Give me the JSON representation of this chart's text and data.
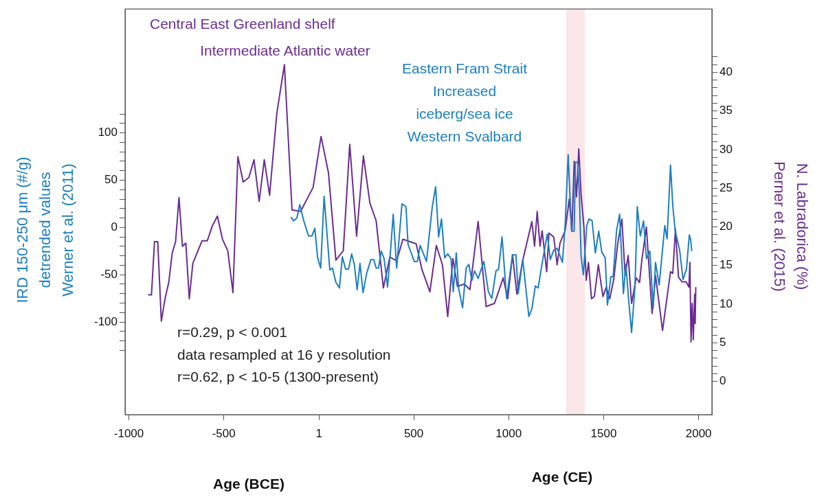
{
  "chart_data": {
    "type": "line",
    "xlabel": "Age (BCE)",
    "ylabel": "IRD 150-250 μm (#/g)\ndetrended values\nWerner et al. (2011)",
    "y2label": "N. Labradorica (%)\nPerner et al. (2015)",
    "xlim": [
      -1020,
      2070
    ],
    "xticks": [
      -1000,
      -500,
      1,
      500,
      1000,
      1500,
      2000
    ],
    "ylim": [
      -198,
      231
    ],
    "yticks": [
      {
        "value": -130,
        "label": null
      },
      {
        "value": -120,
        "label": null
      },
      {
        "value": -110,
        "label": null
      },
      -100,
      {
        "value": -90,
        "label": null
      },
      {
        "value": -80,
        "label": null
      },
      {
        "value": -70,
        "label": null
      },
      {
        "value": -60,
        "label": null
      },
      -50,
      {
        "value": -40,
        "label": null
      },
      {
        "value": -30,
        "label": null
      },
      {
        "value": -20,
        "label": null
      },
      {
        "value": -10,
        "label": null
      },
      0,
      {
        "value": 10,
        "label": null
      },
      {
        "value": 20,
        "label": null
      },
      {
        "value": 30,
        "label": null
      },
      {
        "value": 40,
        "label": null
      },
      50,
      {
        "value": 60,
        "label": null
      },
      {
        "value": 70,
        "label": null
      },
      {
        "value": 80,
        "label": null
      },
      {
        "value": 90,
        "label": null
      },
      100,
      {
        "value": 110,
        "label": null
      },
      {
        "value": 120,
        "label": null
      }
    ],
    "y2lim": [
      -4.3,
      48.2
    ],
    "y2ticks": [
      0,
      {
        "value": 1,
        "label": null
      },
      {
        "value": 2,
        "label": null
      },
      {
        "value": 3,
        "label": null
      },
      {
        "value": 4,
        "label": null
      },
      5,
      {
        "value": 6,
        "label": null
      },
      {
        "value": 7,
        "label": null
      },
      {
        "value": 8,
        "label": null
      },
      {
        "value": 9,
        "label": null
      },
      10,
      {
        "value": 11,
        "label": null
      },
      {
        "value": 12,
        "label": null
      },
      {
        "value": 13,
        "label": null
      },
      {
        "value": 14,
        "label": null
      },
      15,
      {
        "value": 16,
        "label": null
      },
      {
        "value": 17,
        "label": null
      },
      {
        "value": 18,
        "label": null
      },
      {
        "value": 19,
        "label": null
      },
      20,
      {
        "value": 21,
        "label": null
      },
      {
        "value": 22,
        "label": null
      },
      {
        "value": 23,
        "label": null
      },
      {
        "value": 24,
        "label": null
      },
      25,
      {
        "value": 26,
        "label": null
      },
      {
        "value": 27,
        "label": null
      },
      {
        "value": 28,
        "label": null
      },
      {
        "value": 29,
        "label": null
      },
      30,
      {
        "value": 31,
        "label": null
      },
      {
        "value": 32,
        "label": null
      },
      {
        "value": 33,
        "label": null
      },
      {
        "value": 34,
        "label": null
      },
      35,
      {
        "value": 36,
        "label": null
      },
      {
        "value": 37,
        "label": null
      },
      {
        "value": 38,
        "label": null
      },
      {
        "value": 39,
        "label": null
      },
      40,
      {
        "value": 41,
        "label": null
      },
      {
        "value": 42,
        "label": null
      }
    ],
    "grid": false,
    "legend": false,
    "marker": "none",
    "bands": [
      {
        "axis": "x",
        "from": 1303,
        "to": 1401,
        "color": "#fbe6e8"
      }
    ],
    "annotations": [
      "Central East Greenland shelf",
      "Intermediate Atlantic water",
      "Eastern Fram Strait",
      "Increased",
      "iceberg/sea ice",
      "Western Svalbard",
      "r=0.29, p < 0.001",
      "data resampled at 16 y resolution",
      "r=0.62, p < 10-5 (1300-present)",
      "Age (CE)"
    ],
    "series": [
      {
        "color": "#1b7fc1",
        "axis": "y",
        "x": [
          -147,
          -133,
          -115,
          -100,
          -79,
          -54,
          -36,
          -21,
          -6,
          10,
          28,
          58,
          72,
          90,
          109,
          124,
          141,
          157,
          173,
          187,
          202,
          217,
          233,
          253,
          274,
          290,
          302,
          314,
          329,
          344,
          362,
          378,
          392,
          410,
          438,
          459,
          470,
          483,
          503,
          519,
          534,
          567,
          597,
          615,
          631,
          646,
          663,
          679,
          696,
          708,
          724,
          736,
          757,
          776,
          790,
          806,
          820,
          839,
          869,
          893,
          911,
          933,
          947,
          965,
          989,
          1020,
          1038,
          1050,
          1074,
          1106,
          1122,
          1140,
          1155,
          1176,
          1203,
          1219,
          1237,
          1255,
          1283,
          1297,
          1313,
          1331,
          1345,
          1351,
          1363,
          1372,
          1381,
          1393,
          1411,
          1423,
          1439,
          1456,
          1474,
          1490,
          1508,
          1520,
          1538,
          1550,
          1568,
          1584,
          1604,
          1617,
          1632,
          1647,
          1665,
          1677,
          1693,
          1710,
          1725,
          1743,
          1761,
          1773,
          1792,
          1822,
          1834,
          1852,
          1864,
          1876,
          1900,
          1918,
          1936,
          1951,
          1958,
          1964
        ],
        "values": [
          11,
          7,
          10,
          24,
          7,
          -9,
          -9,
          -1,
          -32,
          -43,
          33,
          -45,
          -43,
          -58,
          -64,
          -31,
          -44,
          -44,
          -28,
          -39,
          -66,
          -38,
          -69,
          -48,
          -34,
          -34,
          -43,
          -43,
          -25,
          -33,
          -63,
          -24,
          14,
          -43,
          25,
          22,
          -18,
          -25,
          -36,
          -36,
          -19,
          -36,
          21,
          43,
          -10,
          9,
          -32,
          -28,
          -33,
          -68,
          -27,
          -64,
          -85,
          -43,
          -39,
          -56,
          -46,
          -54,
          -36,
          -68,
          -75,
          -46,
          -44,
          -10,
          -75,
          -29,
          -29,
          -70,
          -34,
          -94,
          -86,
          -62,
          -64,
          -38,
          -7,
          -34,
          -24,
          -22,
          -37,
          2,
          77,
          -4,
          -4,
          69,
          69,
          35,
          -30,
          -50,
          2,
          9,
          7,
          -27,
          -4,
          -26,
          -32,
          -82,
          -52,
          -52,
          -3,
          14,
          -70,
          -39,
          -78,
          -111,
          -62,
          22,
          -9,
          7,
          -33,
          -25,
          -85,
          -37,
          -61,
          2,
          -12,
          66,
          23,
          -3,
          -24,
          -55,
          -44,
          -8,
          -13,
          -25
        ]
      },
      {
        "color": "#6a2c91",
        "axis": "y2",
        "x": [
          -899,
          -881,
          -865,
          -848,
          -829,
          -808,
          -790,
          -772,
          -754,
          -736,
          -718,
          -700,
          -682,
          -663,
          -615,
          -587,
          -561,
          -534,
          -507,
          -479,
          -452,
          -426,
          -398,
          -368,
          -341,
          -314,
          -287,
          -259,
          -221,
          -181,
          -141,
          -96,
          -30,
          12,
          51,
          90,
          129,
          163,
          199,
          235,
          269,
          302,
          340,
          374,
          410,
          443,
          513,
          543,
          585,
          619,
          651,
          679,
          706,
          730,
          766,
          796,
          839,
          881,
          925,
          971,
          995,
          1020,
          1043,
          1074,
          1122,
          1136,
          1150,
          1165,
          1176,
          1200,
          1212,
          1237,
          1255,
          1270,
          1297,
          1319,
          1333,
          1345,
          1357,
          1369,
          1381,
          1396,
          1408,
          1420,
          1436,
          1451,
          1472,
          1496,
          1514,
          1532,
          1553,
          1574,
          1596,
          1613,
          1629,
          1647,
          1671,
          1689,
          1701,
          1725,
          1743,
          1755,
          1773,
          1810,
          1852,
          1864,
          1878,
          1894,
          1912,
          1934,
          1949,
          1954,
          1960,
          1966,
          1972,
          1979,
          1982,
          1985
        ],
        "values": [
          11.2,
          11.2,
          18.1,
          18.1,
          7.8,
          10.9,
          12.8,
          16.6,
          18.1,
          23.8,
          17.5,
          17.9,
          10.7,
          15.3,
          18.2,
          18.2,
          20.1,
          21.4,
          18.4,
          16.9,
          11.5,
          29.1,
          25.8,
          26.4,
          28.7,
          23.3,
          28.7,
          24.1,
          34.7,
          41.0,
          22.2,
          22.0,
          25.1,
          31.7,
          27.0,
          15.7,
          16.9,
          30.7,
          18.8,
          29.2,
          23.1,
          20.8,
          12.1,
          16.1,
          15.6,
          18.4,
          17.8,
          14.5,
          11.6,
          17.6,
          15.1,
          8.4,
          15.9,
          12.3,
          12.6,
          11.9,
          20.7,
          9.7,
          10.1,
          13.4,
          10.7,
          16.4,
          11.3,
          15.7,
          20.7,
          17.5,
          22.0,
          17.5,
          19.5,
          14.2,
          19.2,
          18.7,
          15.1,
          17.9,
          19.5,
          23.6,
          19.5,
          28.5,
          23.9,
          30.1,
          24.2,
          20.0,
          13.1,
          15.4,
          10.7,
          11.0,
          15.1,
          11.0,
          12.2,
          10.7,
          13.2,
          17.8,
          21.0,
          13.7,
          16.3,
          10.1,
          13.4,
          12.8,
          15.7,
          20.0,
          13.2,
          8.8,
          13.7,
          6.6,
          14.2,
          14.0,
          19.7,
          13.5,
          12.9,
          12.9,
          12.2,
          15.4,
          5.1,
          10.1,
          5.4,
          11.3,
          7.5,
          12.2
        ]
      }
    ]
  }
}
